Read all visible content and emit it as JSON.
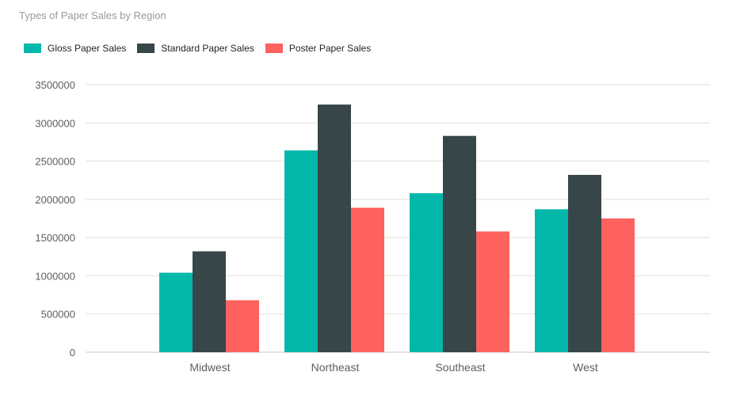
{
  "chart_data": {
    "type": "bar",
    "title": "Types of Paper Sales by Region",
    "xlabel": "",
    "ylabel": "",
    "categories": [
      "Midwest",
      "Northeast",
      "Southeast",
      "West"
    ],
    "series": [
      {
        "name": "Gloss Paper Sales",
        "color": "#01B8AA",
        "values": [
          1040000,
          2640000,
          2080000,
          1870000
        ]
      },
      {
        "name": "Standard Paper Sales",
        "color": "#374649",
        "values": [
          1320000,
          3240000,
          2830000,
          2320000
        ]
      },
      {
        "name": "Poster Paper Sales",
        "color": "#FD625E",
        "values": [
          680000,
          1890000,
          1580000,
          1750000
        ]
      }
    ],
    "ylim": [
      0,
      3500000
    ],
    "yticks": [
      "0",
      "500000",
      "1000000",
      "1500000",
      "2000000",
      "2500000",
      "3000000",
      "3500000"
    ],
    "grid": true,
    "legend": "top-left"
  }
}
